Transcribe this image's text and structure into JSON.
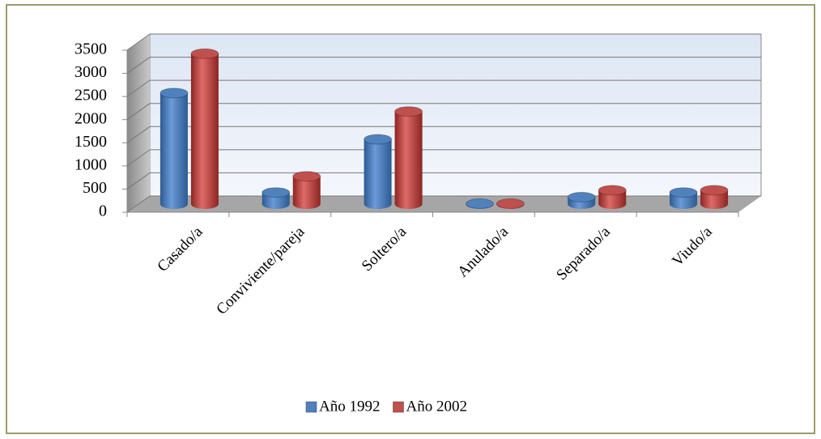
{
  "chart_data": {
    "type": "bar3d",
    "categories": [
      "Casado/a",
      "Conviviente/pareja",
      "Soltero/a",
      "Anulado/a",
      "Separado/a",
      "Viudo/a"
    ],
    "series": [
      {
        "name": "Año 1992",
        "color": "#4f81bd",
        "values": [
          2400,
          250,
          1400,
          10,
          150,
          250
        ]
      },
      {
        "name": "Año 2002",
        "color": "#c0504d",
        "values": [
          3250,
          600,
          2000,
          10,
          300,
          300
        ]
      }
    ],
    "ylim": [
      0,
      3500
    ],
    "yticks": [
      0,
      500,
      1000,
      1500,
      2000,
      2500,
      3000,
      3500
    ],
    "grid": true,
    "legend": "bottom"
  }
}
